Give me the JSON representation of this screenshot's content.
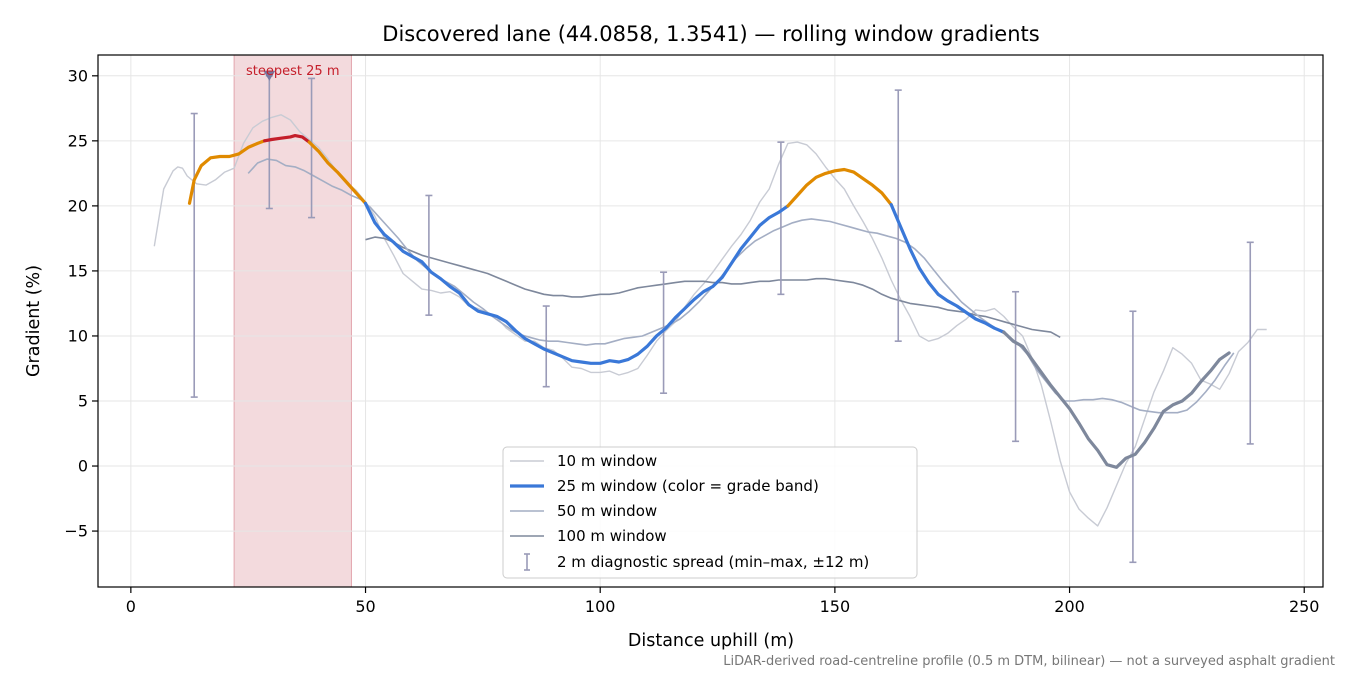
{
  "chart_data": {
    "type": "line",
    "title": "Discovered lane (44.0858, 1.3541) — rolling window gradients",
    "xlabel": "Distance uphill (m)",
    "ylabel": "Gradient (%)",
    "footnote": "LiDAR-derived road-centreline profile (0.5 m DTM, bilinear) — not a surveyed asphalt gradient",
    "xlim": [
      -7,
      254
    ],
    "ylim": [
      -9.3,
      31.6
    ],
    "x_ticks": [
      0,
      50,
      100,
      150,
      200,
      250
    ],
    "y_ticks": [
      -5,
      0,
      5,
      10,
      15,
      20,
      25,
      30
    ],
    "grid": true,
    "legend_position": "lower center",
    "colors": {
      "w10": "#c8cbd4",
      "w25_blue": "#3a78d8",
      "w25_orange": "#e08a00",
      "w25_red": "#c41e2a",
      "w50": "#a4aec4",
      "w100": "#7e889c",
      "spread": "#9a9bb8",
      "band_fill": "#f3dadd",
      "band_edge": "#e3a6ae",
      "steep_marker": "#7878a0"
    },
    "steepest": {
      "label": "steepest 25 m",
      "x_start": 22,
      "x_end": 47,
      "marker_x": 29.5,
      "marker_y": 30
    },
    "legend": [
      {
        "label": "10 m window",
        "key": "w10"
      },
      {
        "label": "25 m window (color = grade band)",
        "key": "w25"
      },
      {
        "label": "50 m window",
        "key": "w50"
      },
      {
        "label": "100 m window",
        "key": "w100"
      },
      {
        "label": "2 m diagnostic spread (min–max, ±12 m)",
        "key": "spread"
      }
    ],
    "series": [
      {
        "key": "w10",
        "x": [
          5,
          7,
          9,
          10,
          11,
          12,
          14,
          16,
          18,
          20,
          22,
          24,
          26,
          28,
          30,
          32,
          34,
          36,
          38,
          40,
          42,
          44,
          46,
          48,
          50,
          52,
          54,
          56,
          58,
          60,
          62,
          64,
          66,
          68,
          70,
          72,
          74,
          76,
          78,
          80,
          82,
          84,
          86,
          88,
          90,
          92,
          94,
          96,
          98,
          100,
          102,
          104,
          106,
          108,
          110,
          112,
          114,
          116,
          118,
          120,
          122,
          124,
          126,
          128,
          130,
          132,
          134,
          136,
          138,
          140,
          142,
          144,
          146,
          148,
          150,
          152,
          154,
          156,
          158,
          160,
          162,
          164,
          166,
          168,
          170,
          172,
          174,
          176,
          178,
          180,
          182,
          184,
          186,
          188,
          190,
          192,
          194,
          196,
          198,
          200,
          202,
          204,
          206,
          208,
          210,
          212,
          214,
          216,
          218,
          220,
          222,
          224,
          226,
          228,
          230,
          232,
          234,
          236,
          238,
          240,
          242
        ],
        "y": [
          16.9,
          21.3,
          22.7,
          23,
          22.9,
          22.3,
          21.7,
          21.6,
          22,
          22.6,
          22.9,
          24.8,
          26,
          26.5,
          26.8,
          27,
          26.6,
          25.7,
          25.1,
          24.5,
          23.6,
          22.6,
          21.8,
          21.2,
          20.3,
          19.2,
          17.5,
          16.2,
          14.8,
          14.2,
          13.6,
          13.5,
          13.3,
          13.4,
          13,
          12.3,
          12.1,
          11.8,
          11.4,
          10.6,
          10.1,
          9.6,
          9.6,
          9.1,
          8.9,
          8.3,
          7.6,
          7.5,
          7.2,
          7.2,
          7.3,
          7,
          7.2,
          7.5,
          8.5,
          9.6,
          10.4,
          11.1,
          12.2,
          13.2,
          14,
          14.9,
          15.9,
          16.9,
          17.8,
          18.9,
          20.3,
          21.3,
          23.2,
          24.8,
          24.9,
          24.7,
          24,
          23,
          22.1,
          21.3,
          20,
          18.8,
          17.5,
          16,
          14.3,
          12.8,
          11.5,
          10,
          9.6,
          9.8,
          10.2,
          10.8,
          11.3,
          12,
          11.9,
          12.1,
          11.5,
          10.7,
          10,
          8.3,
          6.2,
          3.4,
          0.4,
          -2,
          -3.3,
          -4,
          -4.6,
          -3.2,
          -1.5,
          0.2,
          1.5,
          3.6,
          5.7,
          7.3,
          9.1,
          8.6,
          7.9,
          6.6,
          6.3,
          5.9,
          7.1,
          8.8,
          9.5,
          10.5,
          10.5
        ]
      },
      {
        "key": "w50",
        "x": [
          25,
          27,
          29,
          31,
          33,
          35,
          37,
          39,
          41,
          43,
          45,
          47,
          49,
          51,
          53,
          55,
          57,
          59,
          61,
          63,
          65,
          67,
          69,
          71,
          73,
          75,
          77,
          79,
          81,
          83,
          85,
          87,
          89,
          91,
          93,
          95,
          97,
          99,
          101,
          103,
          105,
          107,
          109,
          111,
          113,
          115,
          117,
          119,
          121,
          123,
          125,
          127,
          129,
          131,
          133,
          135,
          137,
          139,
          141,
          143,
          145,
          147,
          149,
          151,
          153,
          155,
          157,
          159,
          161,
          163,
          165,
          167,
          169,
          171,
          173,
          175,
          177,
          179,
          181,
          183,
          185,
          187,
          189,
          191,
          193,
          195,
          197,
          199,
          201,
          203,
          205,
          207,
          209,
          211,
          213,
          215,
          217,
          219,
          221,
          223,
          225,
          227,
          229,
          231,
          233,
          235
        ],
        "y": [
          22.5,
          23.3,
          23.6,
          23.5,
          23.1,
          23,
          22.7,
          22.3,
          21.9,
          21.5,
          21.2,
          20.8,
          20.5,
          19.9,
          19.1,
          18.3,
          17.5,
          16.6,
          15.8,
          15.2,
          14.6,
          14.2,
          13.8,
          13.2,
          12.6,
          12.1,
          11.5,
          11,
          10.5,
          10.1,
          9.9,
          9.7,
          9.6,
          9.6,
          9.5,
          9.4,
          9.3,
          9.4,
          9.4,
          9.6,
          9.8,
          9.9,
          10,
          10.3,
          10.6,
          10.9,
          11.3,
          11.9,
          12.6,
          13.4,
          14.2,
          15.1,
          16,
          16.7,
          17.3,
          17.7,
          18.1,
          18.4,
          18.7,
          18.9,
          19,
          18.9,
          18.8,
          18.6,
          18.4,
          18.2,
          18,
          17.9,
          17.7,
          17.5,
          17.2,
          16.7,
          16,
          15.1,
          14.2,
          13.4,
          12.6,
          12,
          11.4,
          10.9,
          10.4,
          10,
          9.4,
          8.6,
          7.4,
          6.5,
          5.6,
          5,
          5,
          5.1,
          5.1,
          5.2,
          5.1,
          4.9,
          4.6,
          4.3,
          4.2,
          4.1,
          4.1,
          4.1,
          4.3,
          4.9,
          5.7,
          6.6,
          7.7,
          8.7
        ]
      },
      {
        "key": "w100",
        "x": [
          50,
          52,
          54,
          56,
          58,
          60,
          62,
          64,
          66,
          68,
          70,
          72,
          74,
          76,
          78,
          80,
          82,
          84,
          86,
          88,
          90,
          92,
          94,
          96,
          98,
          100,
          102,
          104,
          106,
          108,
          110,
          112,
          114,
          116,
          118,
          120,
          122,
          124,
          126,
          128,
          130,
          132,
          134,
          136,
          138,
          140,
          142,
          144,
          146,
          148,
          150,
          152,
          154,
          156,
          158,
          160,
          162,
          164,
          166,
          168,
          170,
          172,
          174,
          176,
          178,
          180,
          182,
          184,
          186,
          188,
          190,
          192,
          194,
          196,
          198
        ],
        "y": [
          17.4,
          17.6,
          17.5,
          17.2,
          16.8,
          16.5,
          16.2,
          16,
          15.8,
          15.6,
          15.4,
          15.2,
          15,
          14.8,
          14.5,
          14.2,
          13.9,
          13.6,
          13.4,
          13.2,
          13.1,
          13.1,
          13,
          13,
          13.1,
          13.2,
          13.2,
          13.3,
          13.5,
          13.7,
          13.8,
          13.9,
          14,
          14.1,
          14.2,
          14.2,
          14.2,
          14.1,
          14.1,
          14,
          14,
          14.1,
          14.2,
          14.2,
          14.3,
          14.3,
          14.3,
          14.3,
          14.4,
          14.4,
          14.3,
          14.2,
          14.1,
          13.9,
          13.6,
          13.2,
          12.9,
          12.7,
          12.5,
          12.4,
          12.3,
          12.2,
          12,
          11.9,
          11.8,
          11.6,
          11.5,
          11.3,
          11.1,
          10.9,
          10.7,
          10.5,
          10.4,
          10.3,
          9.9
        ]
      }
    ],
    "w25_segments": [
      {
        "band": "orange",
        "x": [
          12.5,
          13.5,
          15,
          17,
          19,
          21,
          23,
          25,
          27,
          28.5
        ],
        "y": [
          20.2,
          22,
          23.1,
          23.7,
          23.8,
          23.8,
          24,
          24.5,
          24.8,
          25
        ]
      },
      {
        "band": "red",
        "x": [
          28.5,
          30,
          32,
          34,
          35,
          36.5,
          38
        ],
        "y": [
          25,
          25.1,
          25.2,
          25.3,
          25.4,
          25.3,
          24.9
        ]
      },
      {
        "band": "orange",
        "x": [
          38,
          40,
          42,
          44,
          46,
          48,
          50
        ],
        "y": [
          24.9,
          24.2,
          23.3,
          22.6,
          21.8,
          21,
          20.2
        ]
      },
      {
        "band": "blue",
        "x": [
          50,
          52,
          54,
          56,
          58,
          60,
          62,
          64,
          66,
          68,
          70,
          72,
          74,
          76,
          78,
          80,
          82,
          84,
          86,
          88,
          90,
          92,
          94,
          96,
          98,
          100,
          102,
          104,
          106,
          108,
          110,
          112,
          114,
          116,
          118,
          120,
          122,
          124,
          126,
          128,
          130,
          132,
          134,
          136,
          138,
          140
        ],
        "y": [
          20.2,
          18.7,
          17.8,
          17.2,
          16.5,
          16.1,
          15.7,
          14.9,
          14.4,
          13.8,
          13.3,
          12.4,
          11.9,
          11.7,
          11.5,
          11.1,
          10.4,
          9.8,
          9.4,
          9,
          8.7,
          8.4,
          8.1,
          8,
          7.9,
          7.9,
          8.1,
          8,
          8.2,
          8.6,
          9.2,
          10,
          10.6,
          11.4,
          12.1,
          12.8,
          13.4,
          13.8,
          14.5,
          15.6,
          16.7,
          17.6,
          18.5,
          19.1,
          19.5,
          20
        ]
      },
      {
        "band": "orange",
        "x": [
          140,
          142,
          144,
          146,
          148,
          150,
          152,
          154,
          156,
          158,
          160,
          162
        ],
        "y": [
          20,
          20.8,
          21.6,
          22.2,
          22.5,
          22.7,
          22.8,
          22.6,
          22.1,
          21.6,
          21,
          20.1
        ]
      },
      {
        "band": "blue",
        "x": [
          162,
          164,
          166,
          168,
          170,
          172,
          174,
          176,
          178,
          180,
          182,
          184,
          186
        ],
        "y": [
          20.1,
          18.4,
          16.7,
          15.2,
          14.1,
          13.2,
          12.7,
          12.3,
          11.8,
          11.3,
          11,
          10.6,
          10.3
        ]
      },
      {
        "band": "gray",
        "x": [
          186,
          188,
          190,
          192,
          194,
          196,
          198,
          200,
          202,
          204,
          206,
          208,
          210,
          212,
          214,
          216,
          218,
          220,
          222,
          224,
          226,
          228,
          230,
          232,
          234
        ],
        "y": [
          10.3,
          9.6,
          9.2,
          8.2,
          7.2,
          6.2,
          5.3,
          4.4,
          3.3,
          2.1,
          1.2,
          0.1,
          -0.1,
          0.6,
          0.9,
          1.8,
          2.9,
          4.2,
          4.7,
          5,
          5.6,
          6.5,
          7.3,
          8.2,
          8.7
        ]
      }
    ],
    "spread_bars": [
      {
        "x": 13.5,
        "min": 5.3,
        "max": 27.1
      },
      {
        "x": 29.5,
        "min": 19.8,
        "max": 30
      },
      {
        "x": 38.5,
        "min": 19.1,
        "max": 29.8
      },
      {
        "x": 63.5,
        "min": 11.6,
        "max": 20.8
      },
      {
        "x": 88.5,
        "min": 6.1,
        "max": 12.3
      },
      {
        "x": 113.5,
        "min": 5.6,
        "max": 14.9
      },
      {
        "x": 138.5,
        "min": 13.2,
        "max": 24.9
      },
      {
        "x": 163.5,
        "min": 9.6,
        "max": 28.9
      },
      {
        "x": 188.5,
        "min": 1.9,
        "max": 13.4
      },
      {
        "x": 213.5,
        "min": -7.4,
        "max": 11.9
      },
      {
        "x": 238.5,
        "min": 1.7,
        "max": 17.2
      }
    ]
  }
}
